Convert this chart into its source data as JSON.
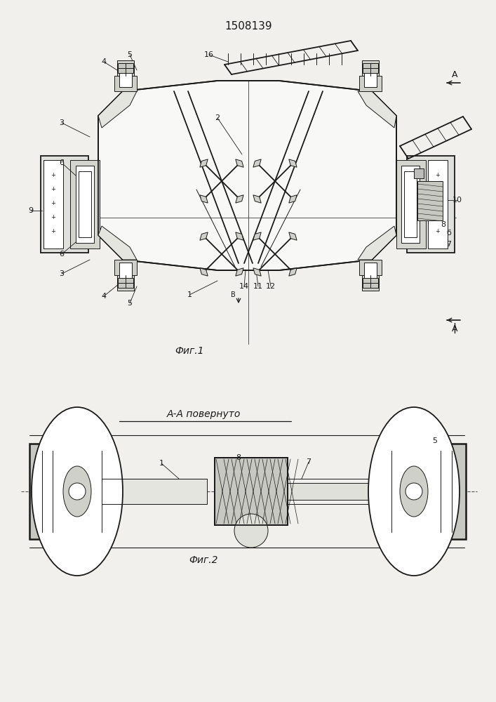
{
  "title": "1508139",
  "fig1_label": "Фиг.1",
  "fig2_label": "Фиг.2",
  "fig2_title": "А-А повернуто",
  "bg_color": "#f2f0ec",
  "line_color": "#1a1a1a",
  "dashed_color": "#555555"
}
